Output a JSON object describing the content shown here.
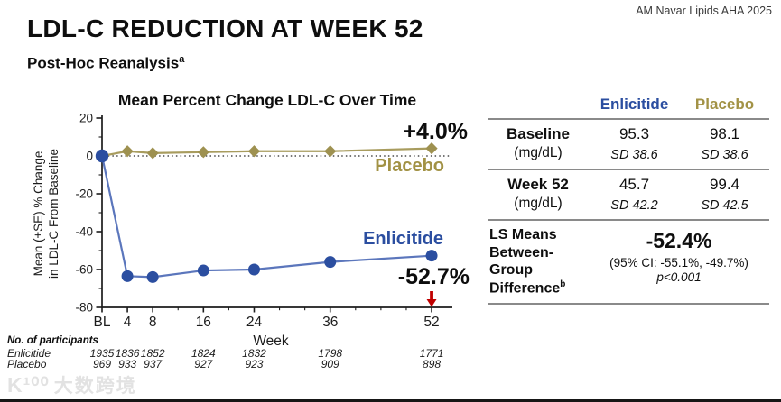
{
  "header": {
    "title": "LDL-C REDUCTION AT WEEK 52",
    "subtitle": "Post-Hoc Reanalysis",
    "subtitle_sup": "a",
    "credit": "AM Navar Lipids AHA 2025"
  },
  "colors": {
    "enlicitide_blue": "#2b4ea0",
    "enlicitide_line": "#5b76bc",
    "placebo_olive": "#9e9150",
    "placebo_line": "#a89c5e",
    "placebo_text": "#a29245",
    "arrow_red": "#c00000",
    "table_rule": "#8a8a8a"
  },
  "chart_data": {
    "type": "line",
    "title": "Mean Percent Change LDL-C Over Time",
    "xlabel": "Week",
    "ylabel": "Mean (±SE) % Change in LDL-C From Baseline",
    "ylabel_lines": [
      "Mean (±SE) % Change",
      "in LDL-C From Baseline"
    ],
    "x_weeks": [
      0,
      4,
      8,
      16,
      24,
      36,
      52
    ],
    "x_tick_labels": [
      "BL",
      "4",
      "8",
      "16",
      "24",
      "36",
      "52"
    ],
    "ylim": [
      -80,
      20
    ],
    "y_ticks": [
      20,
      0,
      -20,
      -40,
      -60,
      -80
    ],
    "y_minor_ticks": [
      10,
      -10,
      -30,
      -50,
      -70
    ],
    "x_minor_weeks": [
      12,
      20,
      28,
      32,
      40,
      44,
      48
    ],
    "zero_reference_line": true,
    "grid": false,
    "legend_position": "inline-end-labels",
    "series": [
      {
        "name": "Placebo",
        "marker": "diamond",
        "color": "#9e9150",
        "line_color": "#a89c5e",
        "text_color": "#a29245",
        "values": [
          0,
          2.5,
          1.5,
          2,
          2.5,
          2.5,
          4
        ],
        "end_annotation": "+4.0%"
      },
      {
        "name": "Enlicitide",
        "marker": "circle",
        "color": "#2b4ea0",
        "line_color": "#5b76bc",
        "text_color": "#2b4ea0",
        "values": [
          0,
          -63.5,
          -64,
          -60.5,
          -60,
          -56,
          -52.7
        ],
        "end_annotation": "-52.7%"
      }
    ],
    "arrow_annotation": {
      "week": 52,
      "color": "#c00000"
    },
    "participants": {
      "heading": "No. of participants",
      "rows": [
        {
          "name": "Enlicitide",
          "values": [
            "1935",
            "1836",
            "1852",
            "1824",
            "1832",
            "1798",
            "1771"
          ]
        },
        {
          "name": "Placebo",
          "values": [
            "969",
            "933",
            "937",
            "927",
            "923",
            "909",
            "898"
          ]
        }
      ]
    }
  },
  "table": {
    "col_headers": [
      {
        "label": "Enlicitide",
        "color": "#2b4ea0"
      },
      {
        "label": "Placebo",
        "color": "#a29245"
      }
    ],
    "rows": [
      {
        "label": "Baseline",
        "unit": "(mg/dL)",
        "enlicitide_mean": "95.3",
        "enlicitide_sd": "SD 38.6",
        "placebo_mean": "98.1",
        "placebo_sd": "SD 38.6"
      },
      {
        "label": "Week 52",
        "unit": "(mg/dL)",
        "enlicitide_mean": "45.7",
        "enlicitide_sd": "SD 42.2",
        "placebo_mean": "99.4",
        "placebo_sd": "SD 42.5"
      }
    ],
    "ls_means": {
      "label": "LS Means Between-Group Difference",
      "label_sup": "b",
      "value": "-52.4%",
      "ci": "(95% CI: -55.1%, -49.7%)",
      "p": "p<0.001"
    }
  },
  "watermark": {
    "logo": "K¹⁰⁰",
    "text": "大数跨境"
  }
}
